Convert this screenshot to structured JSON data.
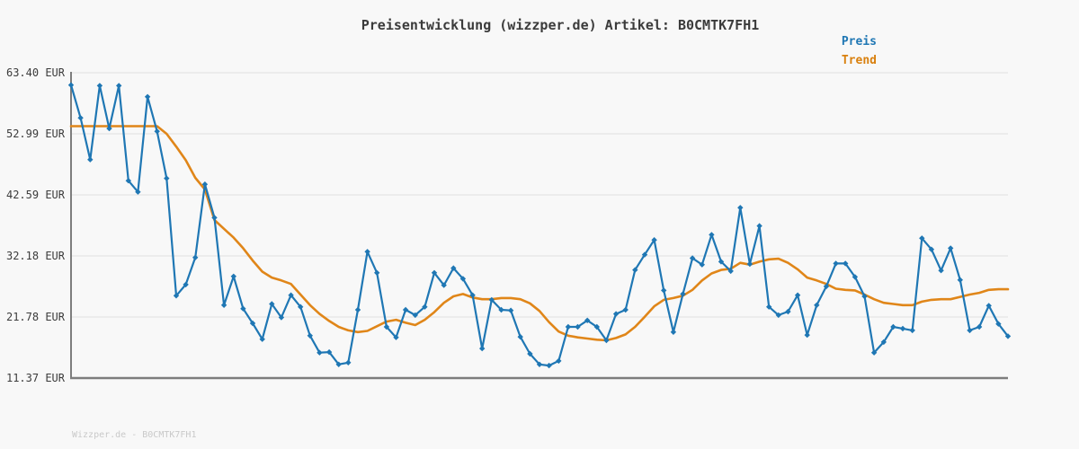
{
  "title": "Preisentwicklung (wizzper.de) Artikel: B0CMTK7FH1",
  "legend": {
    "items": [
      {
        "label": "Preis",
        "color": "#1f77b4"
      },
      {
        "label": "Trend",
        "color": "#d9800e"
      }
    ],
    "position": "top-right"
  },
  "watermark": "Wizzper.de - B0CMTK7FH1",
  "colors": {
    "background": "#f8f8f8",
    "grid": "#e5e5e5",
    "spine": "#7d7d7d",
    "price_line": "#1f77b4",
    "trend_line": "#e08619",
    "text": "#3b3b3b",
    "watermark_text": "#c9c9c9"
  },
  "chart_data": {
    "type": "line",
    "title": "Preisentwicklung (wizzper.de) Artikel: B0CMTK7FH1",
    "xlabel": "",
    "ylabel": "",
    "x_tick_labels": "none",
    "y_tick_labels": [
      "63.40 EUR",
      "52.99 EUR",
      "42.59 EUR",
      "32.18 EUR",
      "21.78 EUR",
      "11.37 EUR"
    ],
    "y_tick_values": [
      63.4,
      52.99,
      42.59,
      32.18,
      21.78,
      11.37
    ],
    "ylim": [
      11.37,
      63.4
    ],
    "grid": "horizontal",
    "legend_position": "top-right",
    "unit": "EUR",
    "series": [
      {
        "name": "Preis",
        "color": "#1f77b4",
        "marker": "diamond",
        "values": [
          61.3,
          55.7,
          48.6,
          61.2,
          53.9,
          61.2,
          45.0,
          43.1,
          59.3,
          53.4,
          45.4,
          25.4,
          27.3,
          31.9,
          44.4,
          38.7,
          23.8,
          28.7,
          23.2,
          20.7,
          18.0,
          24.0,
          21.7,
          25.5,
          23.5,
          18.6,
          15.7,
          15.8,
          13.7,
          14.0,
          23.0,
          32.9,
          29.3,
          20.1,
          18.3,
          23.0,
          22.1,
          23.5,
          29.3,
          27.2,
          30.1,
          28.3,
          25.5,
          16.4,
          24.7,
          23.0,
          22.9,
          18.4,
          15.5,
          13.7,
          13.5,
          14.3,
          20.1,
          20.1,
          21.2,
          20.1,
          17.8,
          22.3,
          23.0,
          29.8,
          32.4,
          34.9,
          26.3,
          19.2,
          25.7,
          31.8,
          30.7,
          35.8,
          31.2,
          29.6,
          40.4,
          30.8,
          37.3,
          23.5,
          22.1,
          22.7,
          25.5,
          18.7,
          23.8,
          27.0,
          30.9,
          30.9,
          28.6,
          25.3,
          15.7,
          17.5,
          20.1,
          19.8,
          19.5,
          35.2,
          33.3,
          29.7,
          33.5,
          28.1,
          19.5,
          20.1,
          23.7,
          20.6,
          18.5
        ]
      },
      {
        "name": "Trend",
        "color": "#e08619",
        "marker": "none",
        "values": [
          54.3,
          54.3,
          54.3,
          54.3,
          54.3,
          54.3,
          54.3,
          54.3,
          54.3,
          54.3,
          53.0,
          50.8,
          48.5,
          45.5,
          43.5,
          38.3,
          36.8,
          35.3,
          33.5,
          31.4,
          29.5,
          28.5,
          28.0,
          27.4,
          25.6,
          23.8,
          22.3,
          21.1,
          20.1,
          19.5,
          19.2,
          19.4,
          20.2,
          21.0,
          21.3,
          20.8,
          20.4,
          21.3,
          22.6,
          24.2,
          25.3,
          25.7,
          25.1,
          24.8,
          24.8,
          25.0,
          25.0,
          24.8,
          24.1,
          22.8,
          20.9,
          19.3,
          18.6,
          18.3,
          18.1,
          17.9,
          17.8,
          18.2,
          18.8,
          20.1,
          21.8,
          23.6,
          24.7,
          25.0,
          25.4,
          26.4,
          28.0,
          29.2,
          29.8,
          30.0,
          31.0,
          30.7,
          31.2,
          31.6,
          31.7,
          31.0,
          29.9,
          28.5,
          28.0,
          27.4,
          26.6,
          26.4,
          26.3,
          25.6,
          24.8,
          24.2,
          24.0,
          23.8,
          23.8,
          24.4,
          24.7,
          24.8,
          24.8,
          25.2,
          25.6,
          25.9,
          26.4,
          26.5,
          26.5
        ]
      }
    ]
  }
}
